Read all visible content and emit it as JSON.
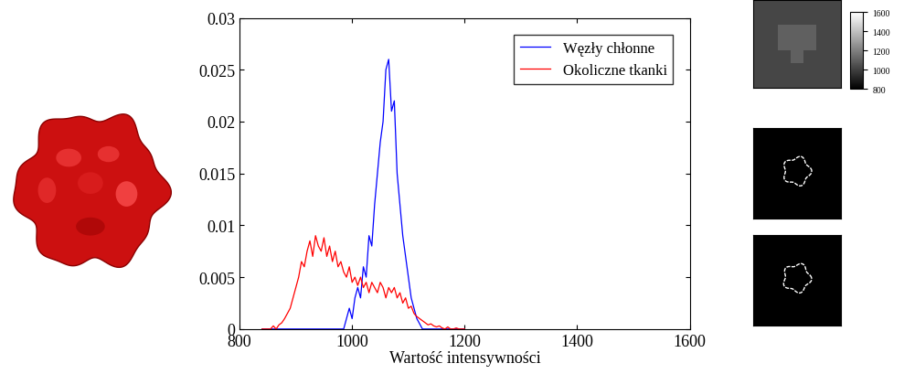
{
  "chart_data": [
    {
      "type": "line",
      "x_label": "Wartość intensywności",
      "x": [
        840,
        845,
        850,
        855,
        860,
        865,
        870,
        875,
        880,
        885,
        890,
        895,
        900,
        905,
        910,
        915,
        920,
        925,
        930,
        935,
        940,
        945,
        950,
        955,
        960,
        965,
        970,
        975,
        980,
        985,
        990,
        995,
        1000,
        1005,
        1010,
        1015,
        1020,
        1025,
        1030,
        1035,
        1040,
        1045,
        1050,
        1055,
        1060,
        1065,
        1070,
        1075,
        1080,
        1085,
        1090,
        1095,
        1100,
        1105,
        1110,
        1115,
        1120,
        1125,
        1130,
        1135,
        1140,
        1145,
        1150,
        1155,
        1160,
        1165,
        1170,
        1175,
        1180,
        1185,
        1190,
        1195,
        1200
      ],
      "series": [
        {
          "name": "Węzły chłonne",
          "color": "#0000ff",
          "values": [
            0,
            0,
            0,
            0,
            0,
            0,
            0,
            0,
            0,
            0,
            0,
            0,
            0,
            0,
            0,
            0,
            0,
            0,
            0,
            0,
            0,
            0,
            0,
            0,
            0,
            0,
            0,
            0,
            0,
            0,
            0.001,
            0.002,
            0.001,
            0.003,
            0.004,
            0.003,
            0.006,
            0.005,
            0.009,
            0.008,
            0.012,
            0.015,
            0.018,
            0.02,
            0.025,
            0.026,
            0.021,
            0.022,
            0.015,
            0.012,
            0.009,
            0.007,
            0.005,
            0.003,
            0.002,
            0.001,
            0.0005,
            0,
            0,
            0,
            0,
            0,
            0,
            0,
            0,
            0,
            0,
            0,
            0,
            0,
            0,
            0,
            0
          ]
        },
        {
          "name": "Okoliczne tkanki",
          "color": "#ff0000",
          "values": [
            0,
            0,
            0,
            0,
            0.0003,
            0,
            0.0004,
            0.0006,
            0.001,
            0.0015,
            0.002,
            0.003,
            0.004,
            0.005,
            0.0065,
            0.006,
            0.0075,
            0.0085,
            0.007,
            0.009,
            0.008,
            0.0075,
            0.0088,
            0.007,
            0.008,
            0.0065,
            0.0075,
            0.006,
            0.0065,
            0.0055,
            0.005,
            0.006,
            0.0045,
            0.005,
            0.0042,
            0.005,
            0.004,
            0.0045,
            0.0035,
            0.0045,
            0.004,
            0.0035,
            0.0045,
            0.004,
            0.003,
            0.004,
            0.0035,
            0.004,
            0.003,
            0.0035,
            0.0025,
            0.003,
            0.002,
            0.0022,
            0.0015,
            0.0012,
            0.001,
            0.0008,
            0.0006,
            0.0004,
            0.0005,
            0.0003,
            0.0002,
            0.0003,
            0.0001,
            0,
            0.0002,
            0,
            0,
            0.0001,
            0,
            0,
            0
          ]
        }
      ],
      "xlim": [
        800,
        1600
      ],
      "xticks": [
        800,
        1000,
        1200,
        1400,
        1600
      ],
      "ylim": [
        0,
        0.03
      ],
      "yticks": [
        0,
        0.005,
        0.01,
        0.015,
        0.02,
        0.025,
        0.03
      ],
      "legend": "upper right"
    },
    {
      "type": "heatmap",
      "cells": [
        [
          1020,
          1020,
          1020,
          1020,
          1020,
          1020,
          1020
        ],
        [
          1020,
          1020,
          1020,
          1020,
          1020,
          1020,
          1020
        ],
        [
          1020,
          1020,
          1100,
          1100,
          1100,
          1020,
          1020
        ],
        [
          1020,
          1020,
          1100,
          1100,
          1100,
          1020,
          1020
        ],
        [
          1020,
          1020,
          1020,
          1100,
          1020,
          1020,
          1020
        ],
        [
          1020,
          1020,
          1020,
          1020,
          1020,
          1020,
          1020
        ],
        [
          1020,
          1020,
          1020,
          1020,
          1020,
          1020,
          1020
        ]
      ],
      "color_range": [
        800,
        1600
      ],
      "color_ticks": [
        800,
        1000,
        1200,
        1400,
        1600
      ],
      "tick_labels": false
    }
  ]
}
